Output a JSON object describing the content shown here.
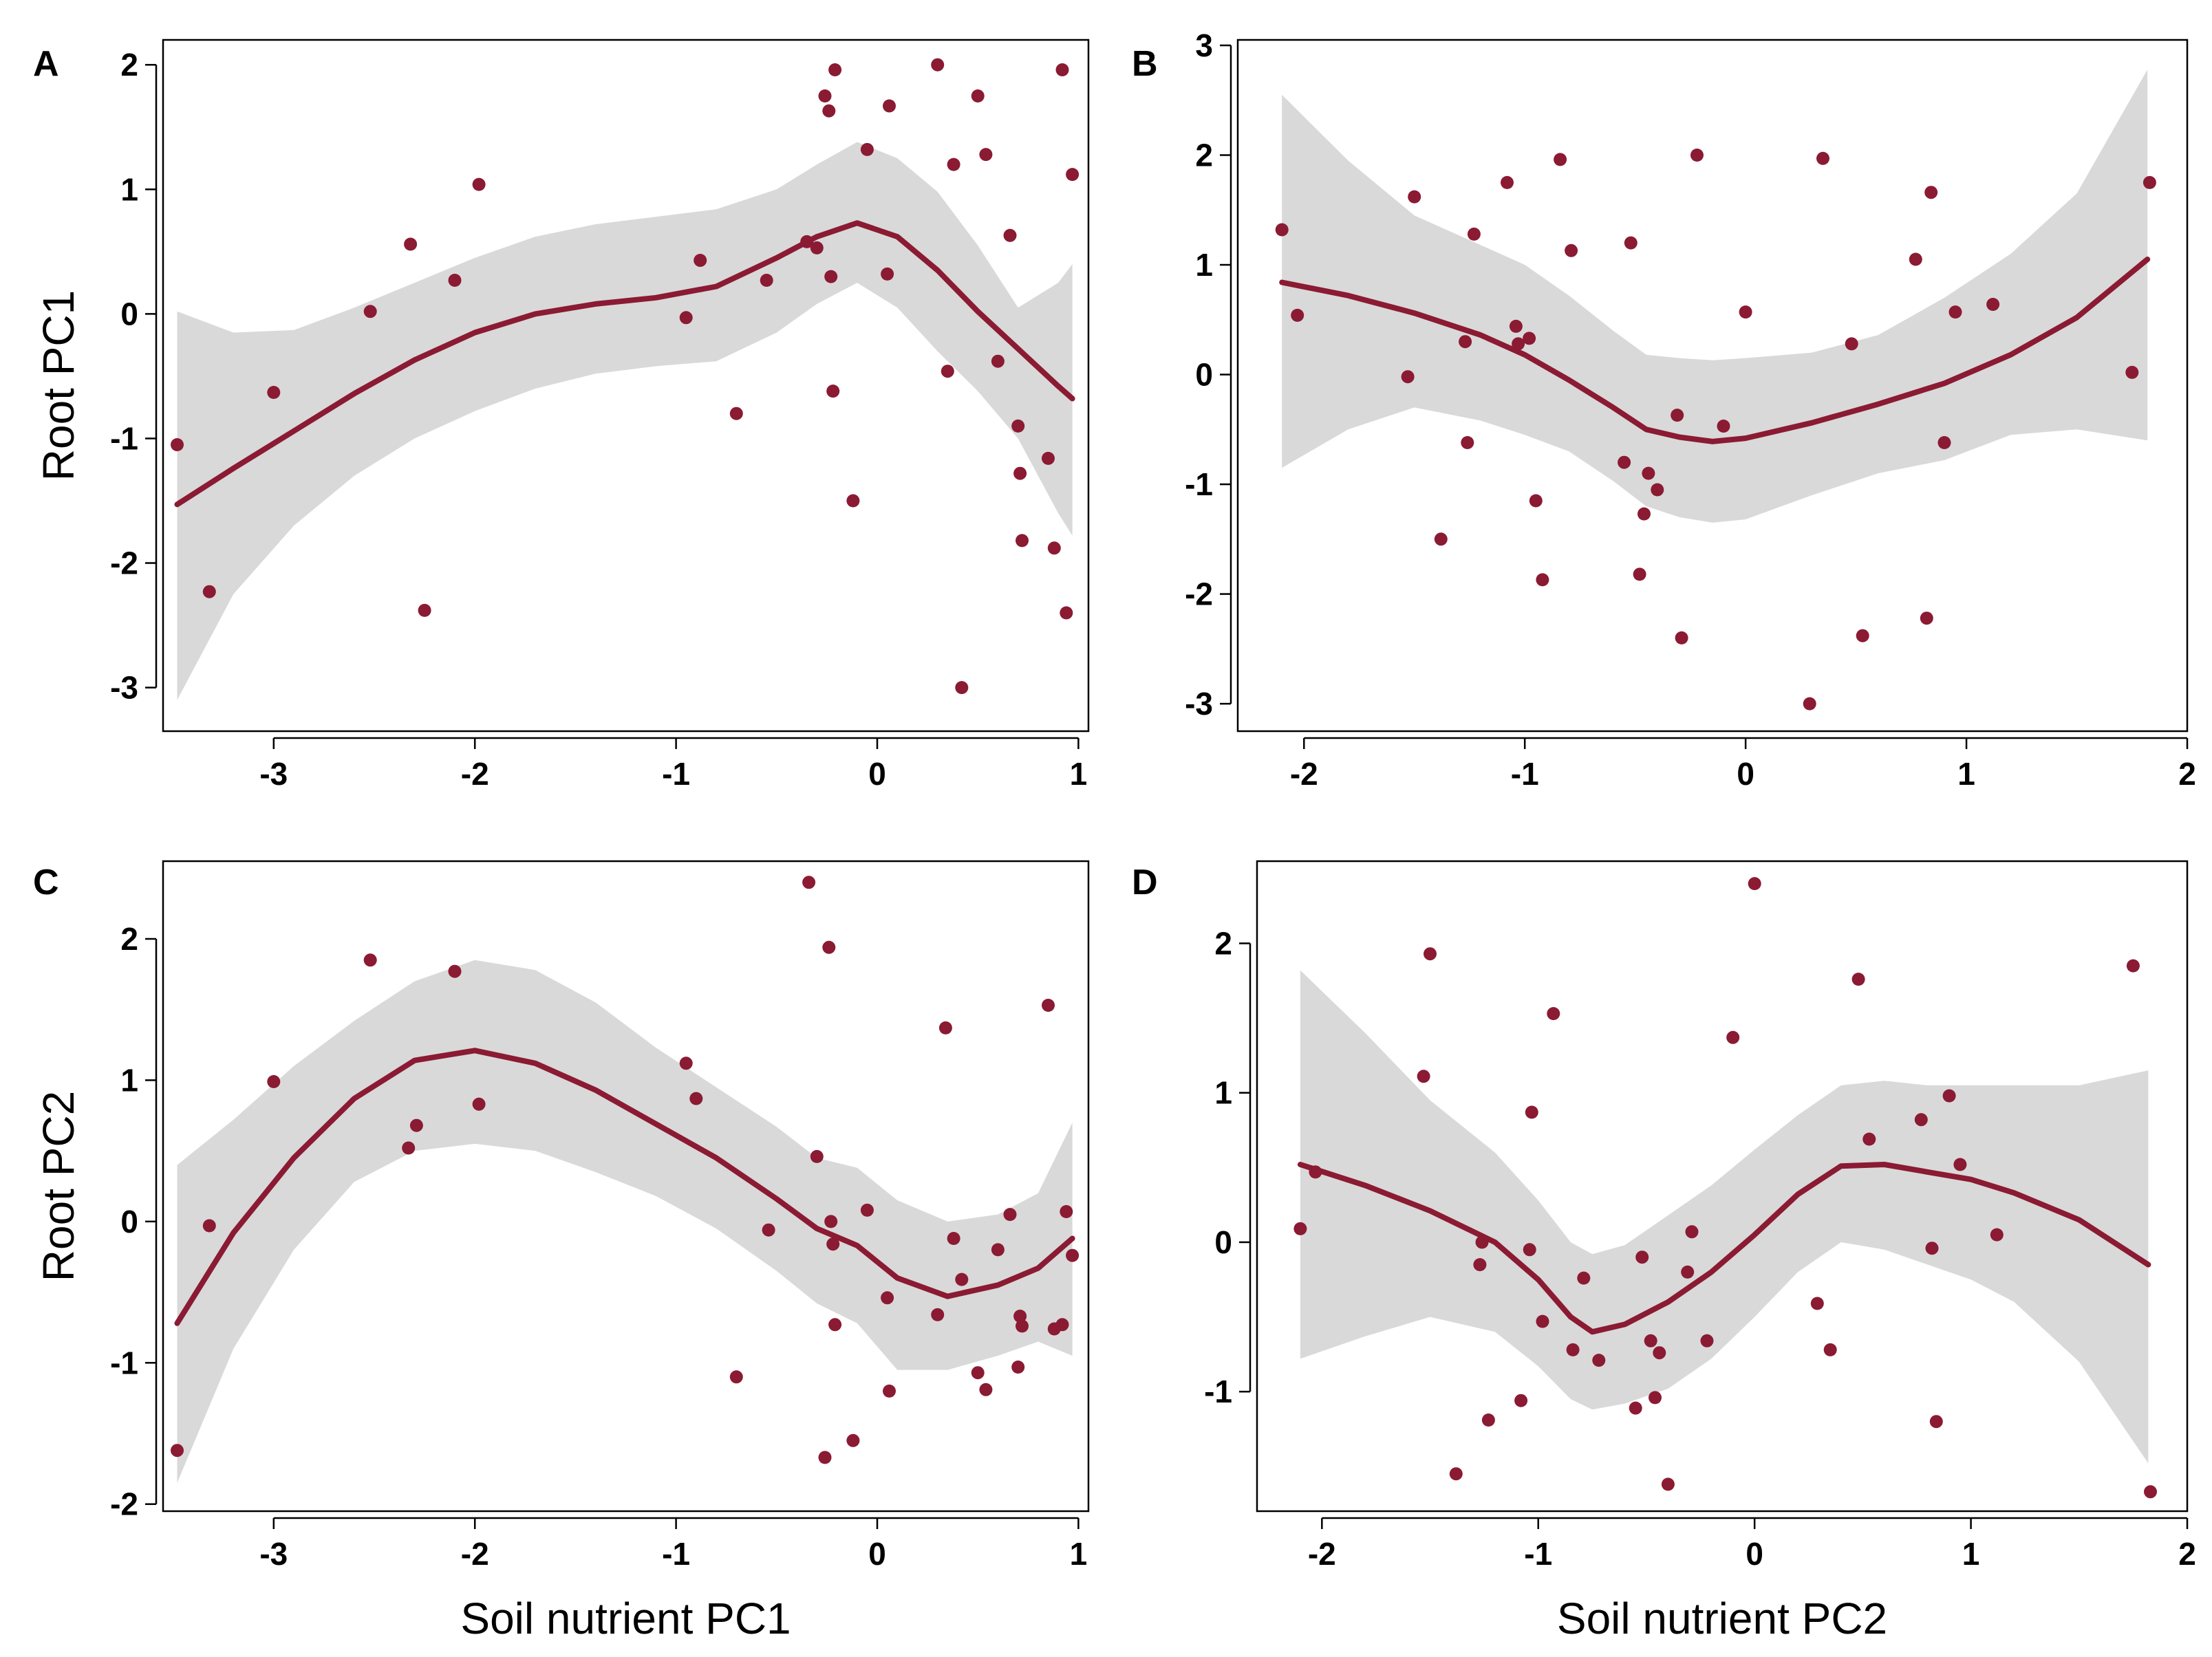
{
  "colors": {
    "point": "#8b1a33",
    "line": "#8b1a33",
    "band": "#d9d9d9"
  },
  "chart_data": [
    {
      "panel_label": "A",
      "type": "scatter",
      "title": "",
      "xlabel": "",
      "ylabel": "Root PC1",
      "xlim": [
        -3.55,
        1.05
      ],
      "ylim": [
        -3.35,
        2.2
      ],
      "xticks": [
        -3,
        -2,
        -1,
        0,
        1
      ],
      "yticks": [
        -3,
        -2,
        -1,
        0,
        1,
        2
      ],
      "points": [
        [
          -3.48,
          -1.05
        ],
        [
          -3.32,
          -2.23
        ],
        [
          -3.0,
          -0.63
        ],
        [
          -2.52,
          0.02
        ],
        [
          -2.32,
          0.56
        ],
        [
          -2.25,
          -2.38
        ],
        [
          -2.1,
          0.27
        ],
        [
          -1.98,
          1.04
        ],
        [
          -0.95,
          -0.03
        ],
        [
          -0.88,
          0.43
        ],
        [
          -0.7,
          -0.8
        ],
        [
          -0.55,
          0.27
        ],
        [
          -0.35,
          0.58
        ],
        [
          -0.3,
          0.53
        ],
        [
          -0.26,
          1.75
        ],
        [
          -0.24,
          1.63
        ],
        [
          -0.23,
          0.3
        ],
        [
          -0.22,
          -0.62
        ],
        [
          -0.21,
          1.96
        ],
        [
          -0.12,
          -1.5
        ],
        [
          -0.05,
          1.32
        ],
        [
          0.05,
          0.32
        ],
        [
          0.06,
          1.67
        ],
        [
          0.3,
          2.0
        ],
        [
          0.35,
          -0.46
        ],
        [
          0.38,
          1.2
        ],
        [
          0.42,
          -3.0
        ],
        [
          0.5,
          1.75
        ],
        [
          0.54,
          1.28
        ],
        [
          0.6,
          -0.38
        ],
        [
          0.66,
          0.63
        ],
        [
          0.7,
          -0.9
        ],
        [
          0.71,
          -1.28
        ],
        [
          0.72,
          -1.82
        ],
        [
          0.85,
          -1.16
        ],
        [
          0.88,
          -1.88
        ],
        [
          0.92,
          1.96
        ],
        [
          0.94,
          -2.4
        ],
        [
          0.97,
          1.12
        ]
      ],
      "smooth": {
        "x": [
          -3.48,
          -3.2,
          -2.9,
          -2.6,
          -2.3,
          -2.0,
          -1.7,
          -1.4,
          -1.1,
          -0.8,
          -0.5,
          -0.3,
          -0.1,
          0.1,
          0.3,
          0.5,
          0.7,
          0.9,
          0.97
        ],
        "y": [
          -1.53,
          -1.24,
          -0.94,
          -0.64,
          -0.37,
          -0.15,
          0.0,
          0.08,
          0.13,
          0.22,
          0.45,
          0.62,
          0.73,
          0.62,
          0.35,
          0.02,
          -0.28,
          -0.58,
          -0.68
        ],
        "lower": [
          -3.1,
          -2.25,
          -1.7,
          -1.3,
          -1.0,
          -0.78,
          -0.6,
          -0.48,
          -0.42,
          -0.38,
          -0.15,
          0.08,
          0.25,
          0.05,
          -0.3,
          -0.62,
          -1.0,
          -1.6,
          -1.78
        ],
        "upper": [
          0.02,
          -0.15,
          -0.13,
          0.05,
          0.25,
          0.45,
          0.62,
          0.72,
          0.78,
          0.84,
          1.0,
          1.2,
          1.38,
          1.25,
          0.98,
          0.55,
          0.05,
          0.25,
          0.4
        ]
      }
    },
    {
      "panel_label": "B",
      "type": "scatter",
      "title": "",
      "xlabel": "",
      "ylabel": "",
      "xlim": [
        -2.3,
        2.0
      ],
      "ylim": [
        -3.25,
        3.05
      ],
      "xticks": [
        -2,
        -1,
        0,
        1,
        2
      ],
      "yticks": [
        -3,
        -2,
        -1,
        0,
        1,
        2,
        3
      ],
      "points": [
        [
          -2.1,
          1.32
        ],
        [
          -2.03,
          0.54
        ],
        [
          -1.53,
          -0.02
        ],
        [
          -1.5,
          1.62
        ],
        [
          -1.38,
          -1.5
        ],
        [
          -1.27,
          0.3
        ],
        [
          -1.26,
          -0.62
        ],
        [
          -1.23,
          1.28
        ],
        [
          -1.08,
          1.75
        ],
        [
          -1.04,
          0.44
        ],
        [
          -1.03,
          0.28
        ],
        [
          -0.98,
          0.33
        ],
        [
          -0.95,
          -1.15
        ],
        [
          -0.92,
          -1.87
        ],
        [
          -0.84,
          1.96
        ],
        [
          -0.79,
          1.13
        ],
        [
          -0.55,
          -0.8
        ],
        [
          -0.52,
          1.2
        ],
        [
          -0.48,
          -1.82
        ],
        [
          -0.46,
          -1.27
        ],
        [
          -0.44,
          -0.9
        ],
        [
          -0.4,
          -1.05
        ],
        [
          -0.31,
          -0.37
        ],
        [
          -0.29,
          -2.4
        ],
        [
          -0.22,
          2.0
        ],
        [
          -0.1,
          -0.47
        ],
        [
          0.0,
          0.57
        ],
        [
          0.29,
          -3.0
        ],
        [
          0.35,
          1.97
        ],
        [
          0.48,
          0.28
        ],
        [
          0.53,
          -2.38
        ],
        [
          0.77,
          1.05
        ],
        [
          0.82,
          -2.22
        ],
        [
          0.84,
          1.66
        ],
        [
          0.9,
          -0.62
        ],
        [
          0.95,
          0.57
        ],
        [
          1.12,
          0.64
        ],
        [
          1.75,
          0.02
        ],
        [
          1.83,
          1.75
        ]
      ],
      "smooth": {
        "x": [
          -2.1,
          -1.8,
          -1.5,
          -1.2,
          -1.0,
          -0.8,
          -0.6,
          -0.45,
          -0.3,
          -0.15,
          0.0,
          0.3,
          0.6,
          0.9,
          1.2,
          1.5,
          1.82
        ],
        "y": [
          0.84,
          0.72,
          0.56,
          0.36,
          0.18,
          -0.05,
          -0.3,
          -0.5,
          -0.57,
          -0.61,
          -0.58,
          -0.44,
          -0.27,
          -0.08,
          0.18,
          0.52,
          1.05
        ],
        "lower": [
          -0.85,
          -0.5,
          -0.3,
          -0.42,
          -0.55,
          -0.7,
          -0.97,
          -1.2,
          -1.3,
          -1.35,
          -1.32,
          -1.1,
          -0.9,
          -0.78,
          -0.55,
          -0.5,
          -0.6
        ],
        "upper": [
          2.55,
          1.95,
          1.45,
          1.18,
          1.0,
          0.72,
          0.4,
          0.18,
          0.15,
          0.13,
          0.15,
          0.2,
          0.36,
          0.7,
          1.1,
          1.65,
          2.78
        ]
      }
    },
    {
      "panel_label": "C",
      "type": "scatter",
      "title": "",
      "xlabel": "Soil nutrient PC1",
      "ylabel": "Root PC2",
      "xlim": [
        -3.55,
        1.05
      ],
      "ylim": [
        -2.05,
        2.55
      ],
      "xticks": [
        -3,
        -2,
        -1,
        0,
        1
      ],
      "yticks": [
        -2,
        -1,
        0,
        1,
        2
      ],
      "points": [
        [
          -3.48,
          -1.62
        ],
        [
          -3.32,
          -0.03
        ],
        [
          -3.0,
          0.99
        ],
        [
          -2.52,
          1.85
        ],
        [
          -2.33,
          0.52
        ],
        [
          -2.29,
          0.68
        ],
        [
          -2.1,
          1.77
        ],
        [
          -1.98,
          0.83
        ],
        [
          -0.95,
          1.12
        ],
        [
          -0.9,
          0.87
        ],
        [
          -0.7,
          -1.1
        ],
        [
          -0.54,
          -0.06
        ],
        [
          -0.34,
          2.4
        ],
        [
          -0.3,
          0.46
        ],
        [
          -0.26,
          -1.67
        ],
        [
          -0.24,
          1.94
        ],
        [
          -0.23,
          0.0
        ],
        [
          -0.22,
          -0.16
        ],
        [
          -0.21,
          -0.73
        ],
        [
          -0.12,
          -1.55
        ],
        [
          -0.05,
          0.08
        ],
        [
          0.05,
          -0.54
        ],
        [
          0.06,
          -1.2
        ],
        [
          0.3,
          -0.66
        ],
        [
          0.34,
          1.37
        ],
        [
          0.38,
          -0.12
        ],
        [
          0.42,
          -0.41
        ],
        [
          0.5,
          -1.07
        ],
        [
          0.54,
          -1.19
        ],
        [
          0.6,
          -0.2
        ],
        [
          0.66,
          0.05
        ],
        [
          0.7,
          -1.03
        ],
        [
          0.71,
          -0.67
        ],
        [
          0.72,
          -0.74
        ],
        [
          0.85,
          1.53
        ],
        [
          0.88,
          -0.76
        ],
        [
          0.92,
          -0.73
        ],
        [
          0.94,
          0.07
        ],
        [
          0.97,
          -0.24
        ]
      ],
      "smooth": {
        "x": [
          -3.48,
          -3.2,
          -2.9,
          -2.6,
          -2.3,
          -2.0,
          -1.7,
          -1.4,
          -1.1,
          -0.8,
          -0.5,
          -0.3,
          -0.1,
          0.1,
          0.35,
          0.6,
          0.8,
          0.97
        ],
        "y": [
          -0.72,
          -0.08,
          0.45,
          0.87,
          1.14,
          1.21,
          1.12,
          0.93,
          0.69,
          0.45,
          0.16,
          -0.05,
          -0.17,
          -0.4,
          -0.53,
          -0.45,
          -0.33,
          -0.12
        ],
        "lower": [
          -1.85,
          -0.9,
          -0.2,
          0.28,
          0.5,
          0.55,
          0.5,
          0.35,
          0.18,
          -0.05,
          -0.35,
          -0.58,
          -0.72,
          -1.05,
          -1.05,
          -0.95,
          -0.85,
          -0.95
        ],
        "upper": [
          0.4,
          0.72,
          1.1,
          1.42,
          1.7,
          1.85,
          1.78,
          1.55,
          1.23,
          0.95,
          0.67,
          0.45,
          0.38,
          0.15,
          0.0,
          0.05,
          0.2,
          0.7
        ]
      }
    },
    {
      "panel_label": "D",
      "type": "scatter",
      "title": "",
      "xlabel": "Soil nutrient PC2",
      "ylabel": "",
      "xlim": [
        -2.3,
        2.0
      ],
      "ylim": [
        -1.8,
        2.55
      ],
      "xticks": [
        -2,
        -1,
        0,
        1,
        2
      ],
      "yticks": [
        -1,
        0,
        1,
        2
      ],
      "points": [
        [
          -2.1,
          0.09
        ],
        [
          -2.03,
          0.47
        ],
        [
          -1.53,
          1.11
        ],
        [
          -1.5,
          1.93
        ],
        [
          -1.38,
          -1.55
        ],
        [
          -1.27,
          -0.15
        ],
        [
          -1.26,
          0.0
        ],
        [
          -1.23,
          -1.19
        ],
        [
          -1.08,
          -1.06
        ],
        [
          -1.04,
          -0.05
        ],
        [
          -1.03,
          0.87
        ],
        [
          -0.98,
          -0.53
        ],
        [
          -0.93,
          1.53
        ],
        [
          -0.84,
          -0.72
        ],
        [
          -0.79,
          -0.24
        ],
        [
          -0.72,
          -0.79
        ],
        [
          -0.55,
          -1.11
        ],
        [
          -0.52,
          -0.1
        ],
        [
          -0.48,
          -0.66
        ],
        [
          -0.46,
          -1.04
        ],
        [
          -0.44,
          -0.74
        ],
        [
          -0.4,
          -1.62
        ],
        [
          -0.31,
          -0.2
        ],
        [
          -0.29,
          0.07
        ],
        [
          -0.22,
          -0.66
        ],
        [
          -0.1,
          1.37
        ],
        [
          0.0,
          2.4
        ],
        [
          0.29,
          -0.41
        ],
        [
          0.35,
          -0.72
        ],
        [
          0.48,
          1.76
        ],
        [
          0.53,
          0.69
        ],
        [
          0.77,
          0.82
        ],
        [
          0.82,
          -0.04
        ],
        [
          0.84,
          -1.2
        ],
        [
          0.9,
          0.98
        ],
        [
          0.95,
          0.52
        ],
        [
          1.12,
          0.05
        ],
        [
          1.75,
          1.85
        ],
        [
          1.83,
          -1.67
        ]
      ],
      "smooth": {
        "x": [
          -2.1,
          -1.8,
          -1.5,
          -1.2,
          -1.0,
          -0.85,
          -0.75,
          -0.6,
          -0.4,
          -0.2,
          0.0,
          0.2,
          0.4,
          0.6,
          0.8,
          1.0,
          1.2,
          1.5,
          1.82
        ],
        "y": [
          0.52,
          0.38,
          0.21,
          0.0,
          -0.25,
          -0.5,
          -0.6,
          -0.55,
          -0.4,
          -0.2,
          0.05,
          0.32,
          0.51,
          0.52,
          0.47,
          0.42,
          0.33,
          0.15,
          -0.15
        ],
        "lower": [
          -0.78,
          -0.63,
          -0.5,
          -0.6,
          -0.83,
          -1.05,
          -1.12,
          -1.08,
          -0.98,
          -0.78,
          -0.5,
          -0.2,
          0.0,
          -0.05,
          -0.15,
          -0.25,
          -0.4,
          -0.8,
          -1.48
        ],
        "upper": [
          1.82,
          1.4,
          0.95,
          0.6,
          0.28,
          0.0,
          -0.08,
          -0.02,
          0.18,
          0.38,
          0.62,
          0.85,
          1.05,
          1.08,
          1.05,
          1.05,
          1.05,
          1.05,
          1.15
        ]
      }
    }
  ]
}
